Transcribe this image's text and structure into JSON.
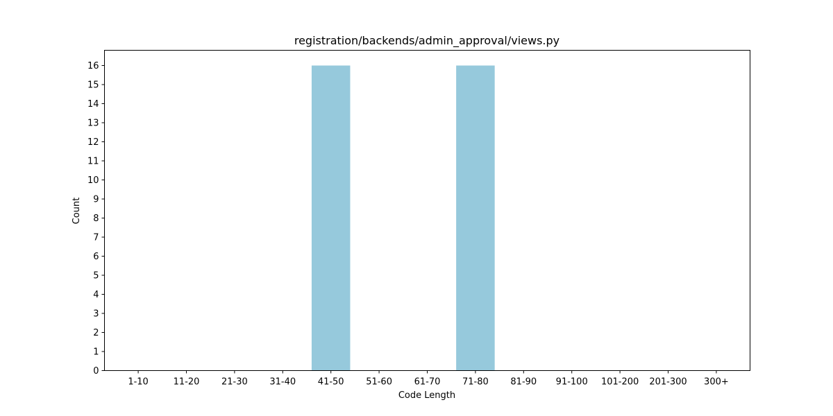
{
  "chart_data": {
    "type": "bar",
    "title": "registration/backends/admin_approval/views.py",
    "xlabel": "Code Length",
    "ylabel": "Count",
    "categories": [
      "1-10",
      "11-20",
      "21-30",
      "31-40",
      "41-50",
      "51-60",
      "61-70",
      "71-80",
      "81-90",
      "91-100",
      "101-200",
      "201-300",
      "300+"
    ],
    "values": [
      0,
      0,
      0,
      0,
      16,
      0,
      0,
      16,
      0,
      0,
      0,
      0,
      0
    ],
    "ylim": [
      0,
      16.8
    ],
    "yticks": [
      0,
      1,
      2,
      3,
      4,
      5,
      6,
      7,
      8,
      9,
      10,
      11,
      12,
      13,
      14,
      15,
      16
    ],
    "grid": false,
    "legend": "none",
    "bar_color": "#96c9dc"
  }
}
